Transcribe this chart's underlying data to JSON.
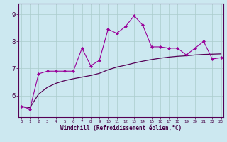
{
  "xlabel": "Windchill (Refroidissement éolien,°C)",
  "background_color": "#cce8f0",
  "line1_color": "#990099",
  "line2_color": "#550055",
  "grid_color": "#aacccc",
  "x": [
    0,
    1,
    2,
    3,
    4,
    5,
    6,
    7,
    8,
    9,
    10,
    11,
    12,
    13,
    14,
    15,
    16,
    17,
    18,
    19,
    20,
    21,
    22,
    23
  ],
  "y_main": [
    5.6,
    5.5,
    6.8,
    6.9,
    6.9,
    6.9,
    6.9,
    7.75,
    7.1,
    7.3,
    8.45,
    8.3,
    8.55,
    8.95,
    8.6,
    7.8,
    7.8,
    7.75,
    7.75,
    7.5,
    7.75,
    8.0,
    7.35,
    7.4
  ],
  "y_avg": [
    5.6,
    5.55,
    6.05,
    6.3,
    6.45,
    6.55,
    6.62,
    6.68,
    6.74,
    6.82,
    6.95,
    7.05,
    7.12,
    7.2,
    7.27,
    7.33,
    7.38,
    7.42,
    7.45,
    7.47,
    7.5,
    7.52,
    7.53,
    7.54
  ],
  "ylim": [
    5.2,
    9.4
  ],
  "yticks": [
    6,
    7,
    8,
    9
  ],
  "xticks": [
    0,
    1,
    2,
    3,
    4,
    5,
    6,
    7,
    8,
    9,
    10,
    11,
    12,
    13,
    14,
    15,
    16,
    17,
    18,
    19,
    20,
    21,
    22,
    23
  ]
}
